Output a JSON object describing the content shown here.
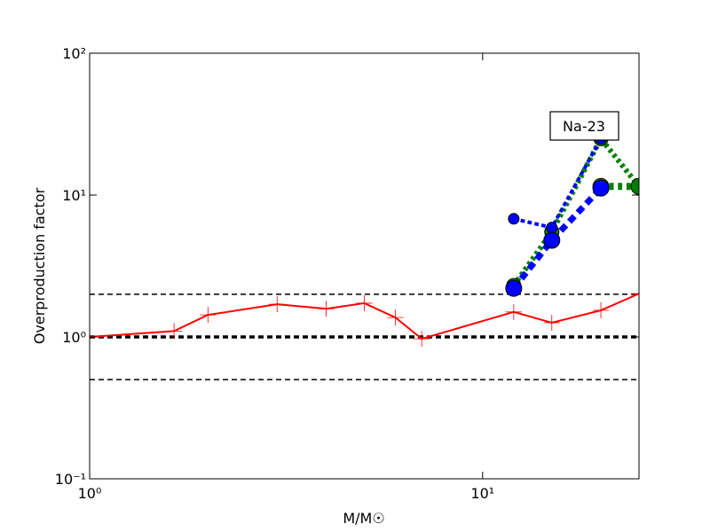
{
  "chart_data": {
    "type": "line",
    "ylabel": "Overproduction factor",
    "xlabel": "M/M☉",
    "annotation": "Na-23",
    "xscale": "log",
    "yscale": "log",
    "xlim": [
      1,
      25
    ],
    "ylim": [
      0.1,
      100
    ],
    "xticks": [
      {
        "value": 1,
        "label": "10⁰"
      },
      {
        "value": 10,
        "label": "10¹"
      }
    ],
    "yticks": [
      {
        "value": 0.1,
        "label": "10⁻¹"
      },
      {
        "value": 1,
        "label": "10⁰"
      },
      {
        "value": 10,
        "label": "10¹"
      },
      {
        "value": 100,
        "label": "10²"
      }
    ],
    "reference_lines": [
      {
        "value": 2,
        "linewidth": 1.5
      },
      {
        "value": 1,
        "linewidth": 3.5
      },
      {
        "value": 0.5,
        "linewidth": 1.5
      }
    ],
    "series": [
      {
        "color": "#ff0000",
        "linewidth": 2,
        "dash": "solid",
        "marker": "+",
        "marker_size": 9,
        "x": [
          1,
          1.64,
          2,
          3,
          4,
          5,
          6,
          7,
          12,
          15,
          20,
          25
        ],
        "values": [
          1.0,
          1.1,
          1.43,
          1.7,
          1.58,
          1.73,
          1.37,
          0.97,
          1.5,
          1.26,
          1.54,
          2.02
        ]
      },
      {
        "color": "#008000",
        "linewidth": 6,
        "dash": "dotted",
        "marker": "o",
        "marker_size": 8,
        "x": [
          12,
          15,
          20,
          25
        ],
        "values": [
          2.3,
          5.5,
          25,
          11.5
        ]
      },
      {
        "color": "#008000",
        "linewidth": 8,
        "dash": "dotted",
        "marker": "o",
        "marker_size": 9,
        "x": [
          20,
          25
        ],
        "values": [
          11.5,
          11.5
        ]
      },
      {
        "color": "#0000ff",
        "linewidth": 4,
        "dash": "dashed",
        "marker": "o",
        "marker_size": 6,
        "x": [
          12,
          15,
          20
        ],
        "values": [
          6.8,
          5.9,
          25
        ]
      },
      {
        "color": "#0000ff",
        "linewidth": 7,
        "dash": "dashed",
        "marker": "o",
        "marker_size": 9,
        "x": [
          12,
          15,
          20
        ],
        "values": [
          2.2,
          4.8,
          11.2
        ]
      }
    ]
  }
}
